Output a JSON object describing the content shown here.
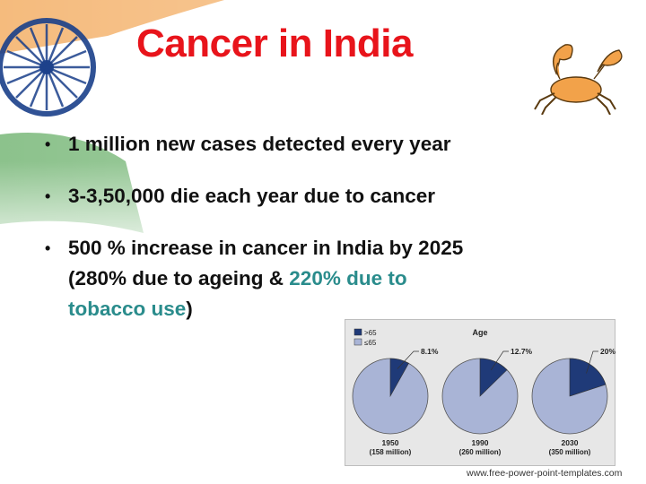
{
  "slide": {
    "title": "Cancer in India",
    "bullets": [
      {
        "text": "1 million new cases detected every year"
      },
      {
        "text": "3-3,50,000 die each year due to cancer"
      },
      {
        "line1": "500 % increase in cancer in India by 2025",
        "line2_prefix": "(280% due to ageing & ",
        "line2_highlight": "220% due to",
        "line3_highlight": "tobacco use",
        "line3_suffix": ")"
      }
    ],
    "bullet_marker": "•",
    "footer": "www.free-power-point-templates.com",
    "highlight_color": "#2a8c8c",
    "title_color": "#e8141b"
  },
  "chart_data": {
    "type": "pie",
    "title": "Age",
    "legend": [
      {
        "label": ">65",
        "color": "#1f3a78"
      },
      {
        "label": "≤65",
        "color": "#a9b4d6"
      }
    ],
    "legend_position": "top-left",
    "pies": [
      {
        "year": "1950",
        "population": "(158 million)",
        "over65_pct": 8.1,
        "label": "8.1%"
      },
      {
        "year": "1990",
        "population": "(260 million)",
        "over65_pct": 12.7,
        "label": "12.7%"
      },
      {
        "year": "2030",
        "population": "(350 million)",
        "over65_pct": 20,
        "label": "20%"
      }
    ]
  }
}
